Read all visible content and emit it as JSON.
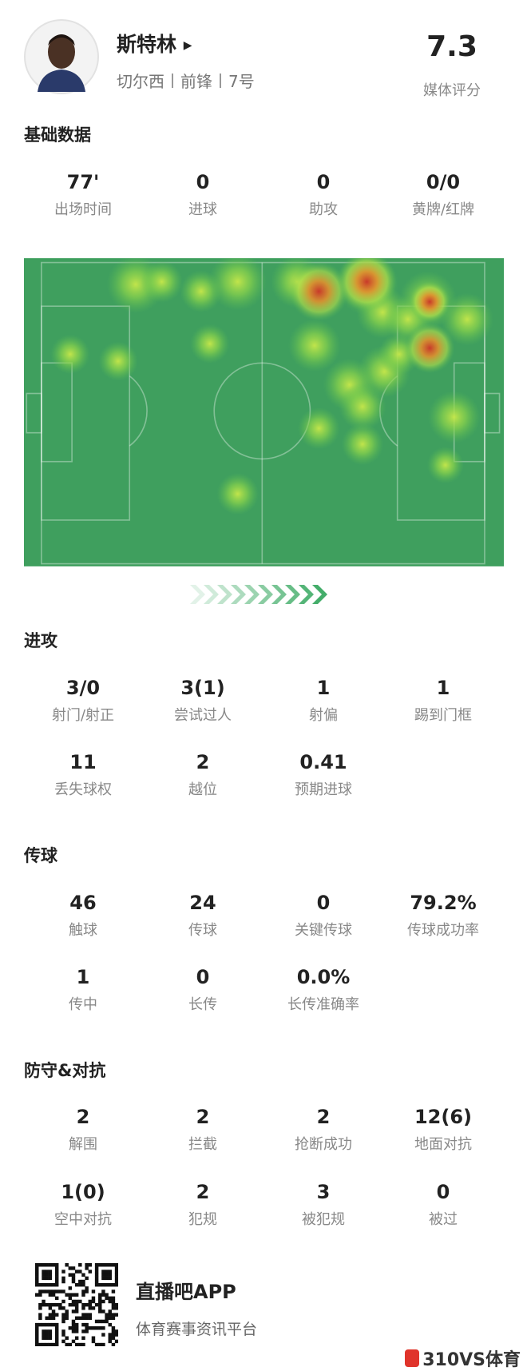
{
  "header": {
    "name": "斯特林",
    "team_line": [
      "切尔西",
      "前锋",
      "7号"
    ],
    "rating": "7.3",
    "rating_label": "媒体评分"
  },
  "sections": [
    {
      "title": "基础数据",
      "stats": [
        {
          "value": "77'",
          "label": "出场时间"
        },
        {
          "value": "0",
          "label": "进球"
        },
        {
          "value": "0",
          "label": "助攻"
        },
        {
          "value": "0/0",
          "label": "黄牌/红牌"
        }
      ]
    },
    {
      "title": "进攻",
      "stats": [
        {
          "value": "3/0",
          "label": "射门/射正"
        },
        {
          "value": "3(1)",
          "label": "尝试过人"
        },
        {
          "value": "1",
          "label": "射偏"
        },
        {
          "value": "1",
          "label": "踢到门框"
        },
        {
          "value": "11",
          "label": "丢失球权"
        },
        {
          "value": "2",
          "label": "越位"
        },
        {
          "value": "0.41",
          "label": "预期进球"
        }
      ]
    },
    {
      "title": "传球",
      "stats": [
        {
          "value": "46",
          "label": "触球"
        },
        {
          "value": "24",
          "label": "传球"
        },
        {
          "value": "0",
          "label": "关键传球"
        },
        {
          "value": "79.2%",
          "label": "传球成功率"
        },
        {
          "value": "1",
          "label": "传中"
        },
        {
          "value": "0",
          "label": "长传"
        },
        {
          "value": "0.0%",
          "label": "长传准确率"
        }
      ]
    },
    {
      "title": "防守&对抗",
      "stats": [
        {
          "value": "2",
          "label": "解围"
        },
        {
          "value": "2",
          "label": "拦截"
        },
        {
          "value": "2",
          "label": "抢断成功"
        },
        {
          "value": "12(6)",
          "label": "地面对抗"
        },
        {
          "value": "1(0)",
          "label": "空中对抗"
        },
        {
          "value": "2",
          "label": "犯规"
        },
        {
          "value": "3",
          "label": "被犯规"
        },
        {
          "value": "0",
          "label": "被过"
        }
      ]
    }
  ],
  "footer": {
    "app": "直播吧APP",
    "subtitle": "体育赛事资讯平台",
    "watermark": "310VS体育"
  }
}
